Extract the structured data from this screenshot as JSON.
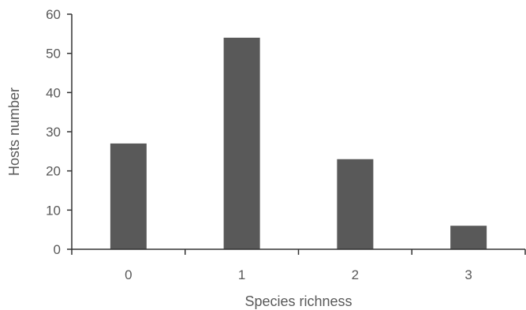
{
  "chart_data": {
    "type": "bar",
    "categories": [
      "0",
      "1",
      "2",
      "3"
    ],
    "values": [
      27,
      54,
      23,
      6
    ],
    "xlabel": "Species richness",
    "ylabel": "Hosts number",
    "ylim": [
      0,
      60
    ],
    "yticks": [
      "0",
      "10",
      "20",
      "30",
      "40",
      "50",
      "60"
    ],
    "grid": false,
    "bar_color": "#595959"
  }
}
